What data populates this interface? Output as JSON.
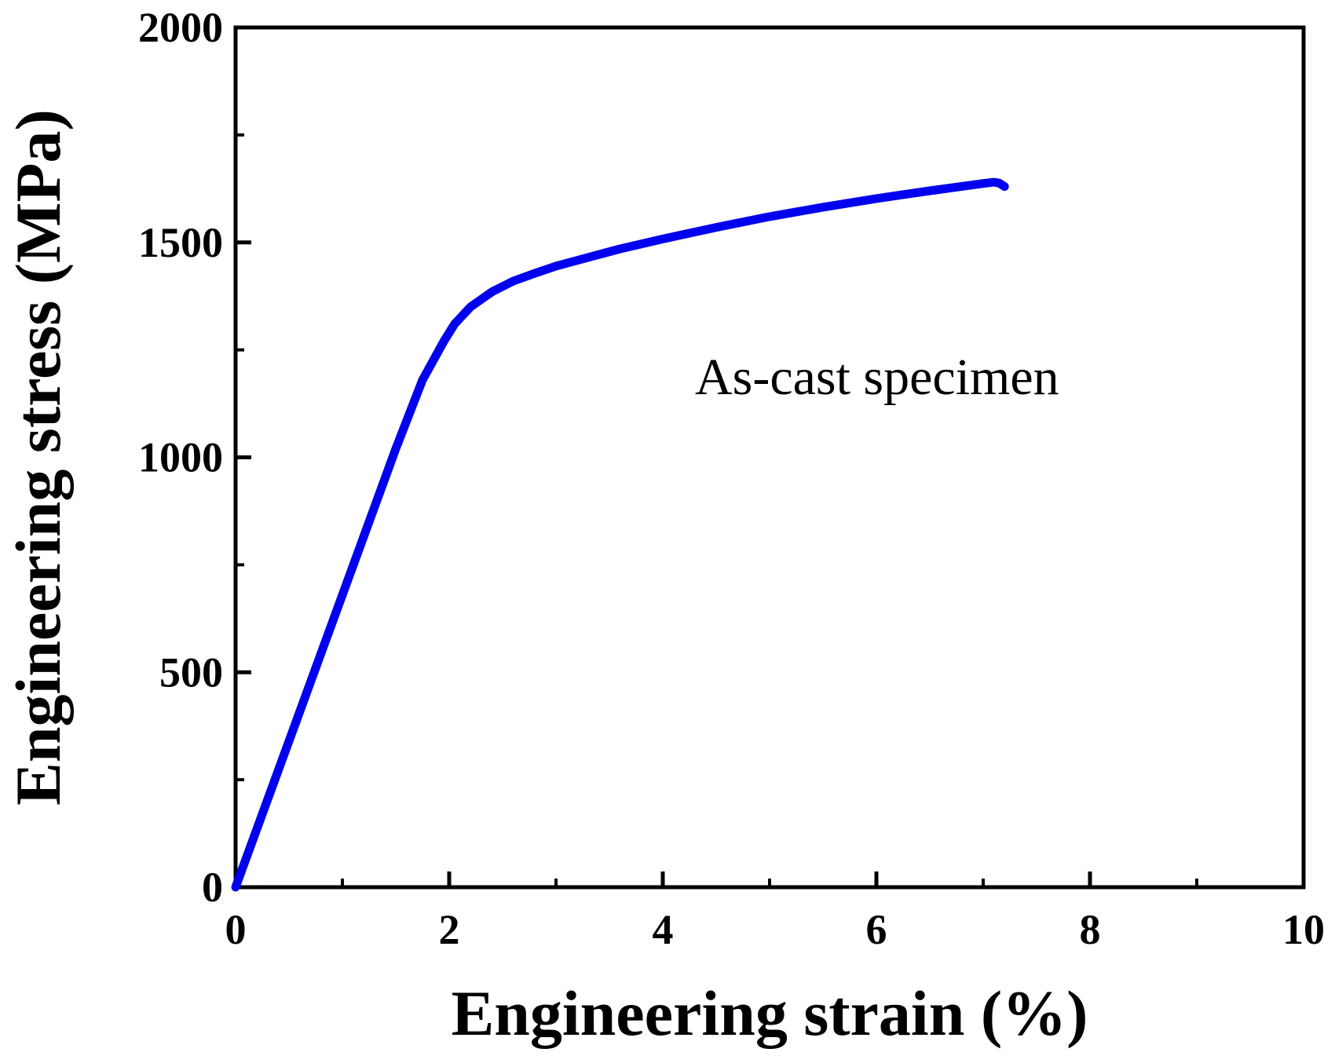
{
  "chart_data": {
    "type": "line",
    "title": "",
    "xlabel": "Engineering strain (%)",
    "ylabel": "Engineering stress (MPa)",
    "xlim": [
      0,
      10
    ],
    "ylim": [
      0,
      2000
    ],
    "grid": false,
    "x_ticks": [
      "0",
      "2",
      "4",
      "6",
      "8",
      "10"
    ],
    "y_ticks": [
      "0",
      "500",
      "1000",
      "1500",
      "2000"
    ],
    "annotation": "As-cast specimen",
    "colors": {
      "series": "#0000ee",
      "axis": "#000000"
    },
    "series": [
      {
        "name": "As-cast specimen",
        "x": [
          0,
          0.25,
          0.5,
          0.75,
          1.0,
          1.25,
          1.5,
          1.75,
          1.95,
          2.05,
          2.2,
          2.4,
          2.6,
          2.8,
          3.0,
          3.3,
          3.6,
          4.0,
          4.5,
          5.0,
          5.5,
          6.0,
          6.5,
          7.0,
          7.1,
          7.15,
          7.2
        ],
        "y": [
          0,
          170,
          340,
          510,
          680,
          850,
          1020,
          1180,
          1270,
          1310,
          1350,
          1385,
          1410,
          1428,
          1445,
          1465,
          1485,
          1508,
          1535,
          1560,
          1582,
          1602,
          1620,
          1637,
          1640,
          1638,
          1630
        ]
      }
    ]
  }
}
